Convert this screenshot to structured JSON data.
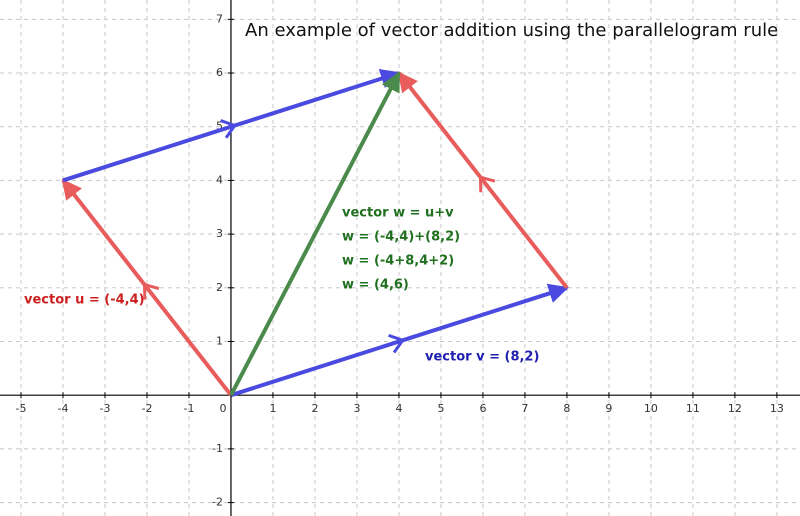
{
  "chart_data": {
    "type": "vector",
    "title": "An example of vector addition using the parallelogram rule",
    "xlim": [
      -5.5,
      13.55
    ],
    "ylim": [
      -2.25,
      7.36
    ],
    "xticks": [
      -5,
      -4,
      -3,
      -2,
      -1,
      0,
      1,
      2,
      3,
      4,
      5,
      6,
      7,
      8,
      9,
      10,
      11,
      12,
      13
    ],
    "yticks": [
      -2,
      -1,
      1,
      2,
      3,
      4,
      5,
      6,
      7
    ],
    "grid": true,
    "vectors": [
      {
        "start": [
          0,
          0
        ],
        "end": [
          -4,
          4
        ],
        "color": "#e85c5c"
      },
      {
        "start": [
          0,
          0
        ],
        "end": [
          8,
          2
        ],
        "color": "#4a4ae0"
      },
      {
        "start": [
          -4,
          4
        ],
        "end": [
          4,
          6
        ],
        "color": "#4a4ae0"
      },
      {
        "start": [
          8,
          2
        ],
        "end": [
          4,
          6
        ],
        "color": "#e85c5c"
      },
      {
        "start": [
          0,
          0
        ],
        "end": [
          4,
          6
        ],
        "color": "#4a8a4a"
      }
    ],
    "annotations": [
      {
        "lines": [
          "vector u = (-4,4)"
        ],
        "color": "#cc2020"
      },
      {
        "lines": [
          "vector v = (8,2)"
        ],
        "color": "#2020b0"
      },
      {
        "lines": [
          "vector w = u+v",
          "w = (-4,4)+(8,2)",
          "w = (-4+8,4+2)",
          "w = (4,6)"
        ],
        "color": "#207020"
      }
    ]
  }
}
